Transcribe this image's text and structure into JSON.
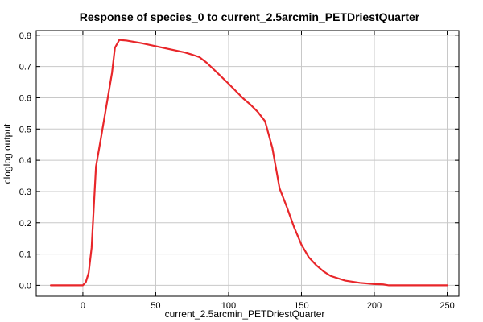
{
  "chart_data": {
    "type": "line",
    "title": "Response of species_0 to current_2.5arcmin_PETDriestQuarter",
    "xlabel": "current_2.5arcmin_PETDriestQuarter",
    "ylabel": "cloglog output",
    "xlim": [
      -32,
      258
    ],
    "ylim": [
      -0.035,
      0.815
    ],
    "xticks": [
      0,
      50,
      100,
      150,
      200,
      250
    ],
    "yticks": [
      0.0,
      0.1,
      0.2,
      0.3,
      0.4,
      0.5,
      0.6,
      0.7,
      0.8
    ],
    "grid": true,
    "line_color": "#e8262a",
    "series": [
      {
        "x": [
          -22,
          0,
          2,
          4,
          6,
          7.5,
          9,
          12,
          16,
          20,
          22,
          25,
          30,
          40,
          50,
          60,
          70,
          75,
          80,
          85,
          90,
          100,
          110,
          115,
          120,
          125,
          130,
          135,
          140,
          145,
          150,
          155,
          160,
          165,
          170,
          180,
          190,
          200,
          206,
          210,
          220,
          230,
          240,
          250
        ],
        "values": [
          0.0,
          0.0,
          0.01,
          0.04,
          0.12,
          0.25,
          0.38,
          0.46,
          0.57,
          0.68,
          0.76,
          0.785,
          0.783,
          0.775,
          0.765,
          0.755,
          0.745,
          0.738,
          0.73,
          0.712,
          0.69,
          0.645,
          0.598,
          0.578,
          0.555,
          0.525,
          0.44,
          0.31,
          0.25,
          0.185,
          0.13,
          0.09,
          0.065,
          0.045,
          0.03,
          0.015,
          0.008,
          0.004,
          0.003,
          0.0,
          0.0,
          0.0,
          0.0,
          0.0
        ]
      }
    ]
  }
}
